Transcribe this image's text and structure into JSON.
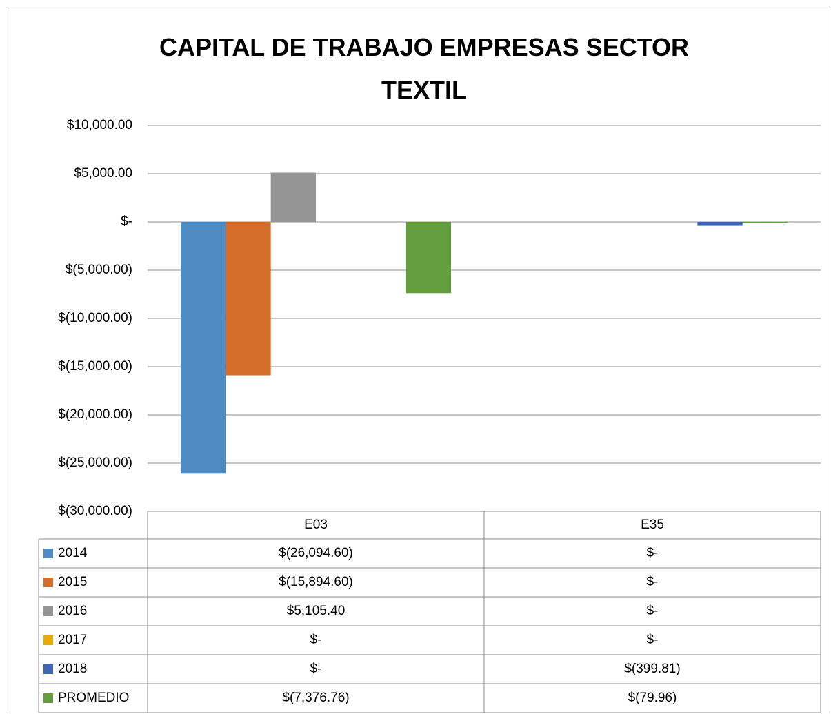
{
  "chart_data": {
    "type": "bar",
    "title": "CAPITAL DE TRABAJO EMPRESAS SECTOR TEXTIL",
    "categories": [
      "E03",
      "E35"
    ],
    "series": [
      {
        "name": "2014",
        "color": "#508cc4",
        "values": [
          -26094.6,
          0
        ],
        "value_labels": [
          "$(26,094.60)",
          "$-"
        ]
      },
      {
        "name": "2015",
        "color": "#d46e2a",
        "values": [
          -15894.6,
          0
        ],
        "value_labels": [
          "$(15,894.60)",
          "$-"
        ]
      },
      {
        "name": "2016",
        "color": "#959595",
        "values": [
          5105.4,
          0
        ],
        "value_labels": [
          "$5,105.40",
          "$-"
        ]
      },
      {
        "name": "2017",
        "color": "#e6ac00",
        "values": [
          0,
          0
        ],
        "value_labels": [
          "$-",
          "$-"
        ]
      },
      {
        "name": "2018",
        "color": "#3f65b5",
        "values": [
          0,
          -399.81
        ],
        "value_labels": [
          "$-",
          "$(399.81)"
        ]
      },
      {
        "name": "PROMEDIO",
        "color": "#639d3d",
        "values": [
          -7376.76,
          -79.96
        ],
        "value_labels": [
          "$(7,376.76)",
          "$(79.96)"
        ]
      }
    ],
    "ylim": [
      -30000,
      10000
    ],
    "yticks": [
      {
        "value": -30000,
        "label": "$(30,000.00)"
      },
      {
        "value": -25000,
        "label": "$(25,000.00)"
      },
      {
        "value": -20000,
        "label": "$(20,000.00)"
      },
      {
        "value": -15000,
        "label": "$(15,000.00)"
      },
      {
        "value": -10000,
        "label": "$(10,000.00)"
      },
      {
        "value": -5000,
        "label": "$(5,000.00)"
      },
      {
        "value": 0,
        "label": "$-"
      },
      {
        "value": 5000,
        "label": "$5,000.00"
      },
      {
        "value": 10000,
        "label": "$10,000.00"
      }
    ],
    "grid": true,
    "legend": "table"
  }
}
